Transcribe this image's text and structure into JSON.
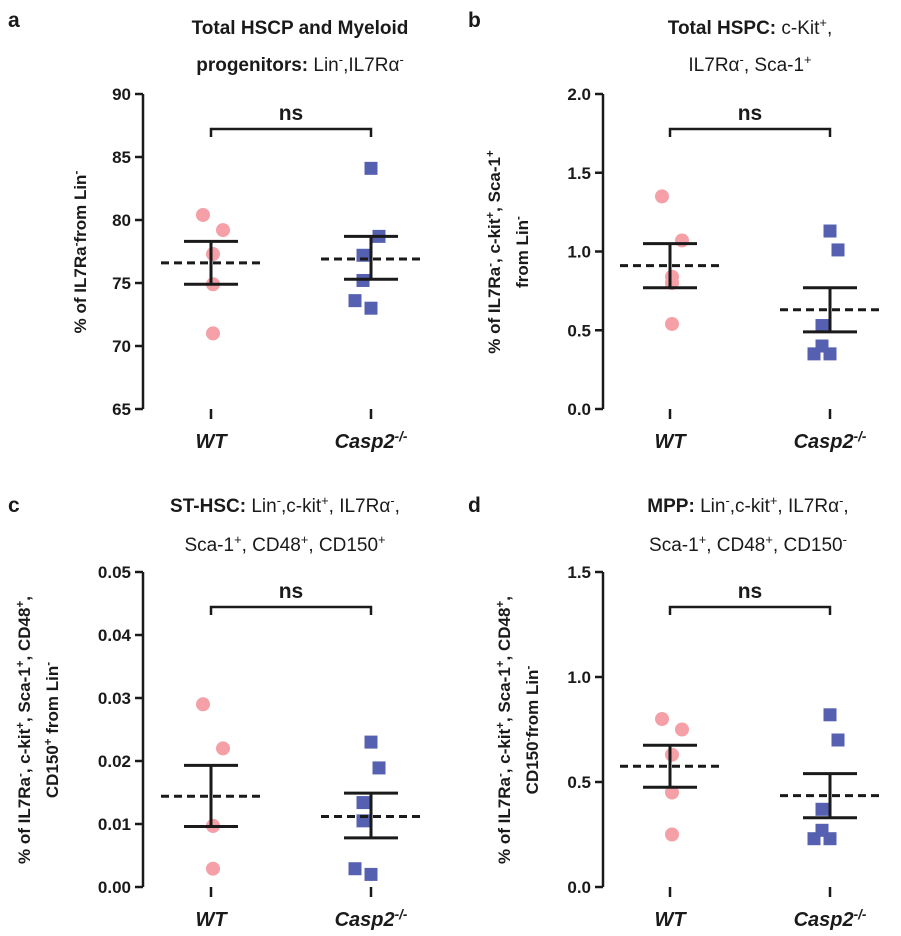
{
  "figure": {
    "panels": [
      {
        "letter": "a",
        "title_lines": [
          [
            {
              "t": "Total HSCP and Myeloid",
              "b": true
            }
          ],
          [
            {
              "t": "progenitors: ",
              "b": true
            },
            {
              "t": "Lin"
            },
            {
              "t": "-",
              "sup": true
            },
            {
              "t": ",IL7Rα"
            },
            {
              "t": "-",
              "sup": true
            }
          ]
        ],
        "ylabel_lines": [
          [
            {
              "t": "% of IL7Ra"
            },
            {
              "t": "-",
              "sup": true
            },
            {
              "t": "from Lin"
            },
            {
              "t": "-",
              "sup": true
            }
          ]
        ],
        "significance": "ns"
      },
      {
        "letter": "b",
        "title_lines": [
          [
            {
              "t": "Total HSPC: ",
              "b": true
            },
            {
              "t": "c-Kit"
            },
            {
              "t": "+",
              "sup": true
            },
            {
              "t": ","
            }
          ],
          [
            {
              "t": "IL7Rα"
            },
            {
              "t": "-",
              "sup": true
            },
            {
              "t": ", Sca-1"
            },
            {
              "t": "+",
              "sup": true
            }
          ]
        ],
        "ylabel_lines": [
          [
            {
              "t": "% of IL7Ra"
            },
            {
              "t": "-",
              "sup": true
            },
            {
              "t": ", c-kit"
            },
            {
              "t": "+",
              "sup": true
            },
            {
              "t": ", Sca-1"
            },
            {
              "t": "+",
              "sup": true
            }
          ],
          [
            {
              "t": "from Lin"
            },
            {
              "t": "-",
              "sup": true
            }
          ]
        ],
        "significance": "ns"
      },
      {
        "letter": "c",
        "title_lines": [
          [
            {
              "t": "ST-HSC: ",
              "b": true
            },
            {
              "t": "Lin"
            },
            {
              "t": "-",
              "sup": true
            },
            {
              "t": ",c-kit"
            },
            {
              "t": "+",
              "sup": true
            },
            {
              "t": ", IL7Rα"
            },
            {
              "t": "-",
              "sup": true
            },
            {
              "t": ","
            }
          ],
          [
            {
              "t": "Sca-1"
            },
            {
              "t": "+",
              "sup": true
            },
            {
              "t": ", CD48"
            },
            {
              "t": "+",
              "sup": true
            },
            {
              "t": ", CD150"
            },
            {
              "t": "+",
              "sup": true
            }
          ]
        ],
        "ylabel_lines": [
          [
            {
              "t": "% of IL7Ra"
            },
            {
              "t": "-",
              "sup": true
            },
            {
              "t": ", c-kit"
            },
            {
              "t": "+",
              "sup": true
            },
            {
              "t": ", Sca-1"
            },
            {
              "t": "+",
              "sup": true
            },
            {
              "t": ", CD48"
            },
            {
              "t": "+",
              "sup": true
            },
            {
              "t": ","
            }
          ],
          [
            {
              "t": "CD150"
            },
            {
              "t": "+",
              "sup": true
            },
            {
              "t": " from Lin"
            },
            {
              "t": "-",
              "sup": true
            }
          ]
        ],
        "significance": "ns"
      },
      {
        "letter": "d",
        "title_lines": [
          [
            {
              "t": "MPP: ",
              "b": true
            },
            {
              "t": "Lin"
            },
            {
              "t": "-",
              "sup": true
            },
            {
              "t": ",c-kit"
            },
            {
              "t": "+",
              "sup": true
            },
            {
              "t": ", IL7Rα"
            },
            {
              "t": "-",
              "sup": true
            },
            {
              "t": ","
            }
          ],
          [
            {
              "t": "Sca-1"
            },
            {
              "t": "+",
              "sup": true
            },
            {
              "t": ", CD48"
            },
            {
              "t": "+",
              "sup": true
            },
            {
              "t": ", CD150"
            },
            {
              "t": "-",
              "sup": true
            }
          ]
        ],
        "ylabel_lines": [
          [
            {
              "t": "% of IL7Ra"
            },
            {
              "t": "-",
              "sup": true
            },
            {
              "t": ", c-kit"
            },
            {
              "t": "+",
              "sup": true
            },
            {
              "t": ", Sca-1"
            },
            {
              "t": "+",
              "sup": true
            },
            {
              "t": ", CD48"
            },
            {
              "t": "+",
              "sup": true
            },
            {
              "t": ","
            }
          ],
          [
            {
              "t": "CD150"
            },
            {
              "t": "-",
              "sup": true
            },
            {
              "t": "from Lin"
            },
            {
              "t": "-",
              "sup": true
            }
          ]
        ],
        "significance": "ns"
      }
    ],
    "group_labels": [
      [
        {
          "t": "WT"
        }
      ],
      [
        {
          "t": "Casp2"
        },
        {
          "t": "-/-",
          "sup": true
        }
      ]
    ],
    "colors": {
      "wt": "#f4a0a6",
      "casp2": "#5560b0",
      "axis": "#1a1a1a",
      "background": "#ffffff"
    },
    "markers": {
      "wt": "circle",
      "casp2": "square"
    }
  },
  "chart_data": [
    {
      "type": "scatter",
      "ylim": [
        65,
        90
      ],
      "yticks": [
        65,
        70,
        75,
        80,
        85,
        90
      ],
      "ytick_labels": [
        "65",
        "70",
        "75",
        "80",
        "85",
        "90"
      ],
      "categories": [
        "WT",
        "Casp2-/-"
      ],
      "series": [
        {
          "name": "WT",
          "values": [
            80.4,
            79.2,
            77.3,
            74.9,
            71.0
          ],
          "mean": 76.6,
          "sem_low": 74.9,
          "sem_high": 78.3
        },
        {
          "name": "Casp2-/-",
          "values": [
            84.1,
            78.7,
            77.2,
            75.2,
            73.6,
            73.0
          ],
          "mean": 76.9,
          "sem_low": 75.3,
          "sem_high": 78.7
        }
      ],
      "significance": "ns"
    },
    {
      "type": "scatter",
      "ylim": [
        0.0,
        2.0
      ],
      "yticks": [
        0.0,
        0.5,
        1.0,
        1.5,
        2.0
      ],
      "ytick_labels": [
        "0.0",
        "0.5",
        "1.0",
        "1.5",
        "2.0"
      ],
      "categories": [
        "WT",
        "Casp2-/-"
      ],
      "series": [
        {
          "name": "WT",
          "values": [
            1.35,
            1.07,
            0.84,
            0.8,
            0.54
          ],
          "mean": 0.91,
          "sem_low": 0.77,
          "sem_high": 1.05
        },
        {
          "name": "Casp2-/-",
          "values": [
            1.13,
            1.01,
            0.53,
            0.4,
            0.35,
            0.35
          ],
          "mean": 0.63,
          "sem_low": 0.49,
          "sem_high": 0.77
        }
      ],
      "significance": "ns"
    },
    {
      "type": "scatter",
      "ylim": [
        0.0,
        0.05
      ],
      "yticks": [
        0.0,
        0.01,
        0.02,
        0.03,
        0.04,
        0.05
      ],
      "ytick_labels": [
        "0.00",
        "0.01",
        "0.02",
        "0.03",
        "0.04",
        "0.05"
      ],
      "categories": [
        "WT",
        "Casp2-/-"
      ],
      "series": [
        {
          "name": "WT",
          "values": [
            0.029,
            0.022,
            0.0097,
            0.0097,
            0.0029
          ],
          "mean": 0.0144,
          "sem_low": 0.0096,
          "sem_high": 0.0193
        },
        {
          "name": "Casp2-/-",
          "values": [
            0.023,
            0.0189,
            0.0134,
            0.0105,
            0.0029,
            0.002
          ],
          "mean": 0.0112,
          "sem_low": 0.0078,
          "sem_high": 0.0149
        },
        {
          "name": "",
          "values": []
        }
      ],
      "significance": "ns"
    },
    {
      "type": "scatter",
      "ylim": [
        0.0,
        1.5
      ],
      "yticks": [
        0.0,
        0.5,
        1.0,
        1.5
      ],
      "ytick_labels": [
        "0.0",
        "0.5",
        "1.0",
        "1.5"
      ],
      "categories": [
        "WT",
        "Casp2-/-"
      ],
      "series": [
        {
          "name": "WT",
          "values": [
            0.8,
            0.75,
            0.63,
            0.45,
            0.25
          ],
          "mean": 0.575,
          "sem_low": 0.475,
          "sem_high": 0.675
        },
        {
          "name": "Casp2-/-",
          "values": [
            0.82,
            0.7,
            0.37,
            0.27,
            0.23,
            0.23
          ],
          "mean": 0.435,
          "sem_low": 0.33,
          "sem_high": 0.54
        }
      ],
      "significance": "ns"
    }
  ]
}
